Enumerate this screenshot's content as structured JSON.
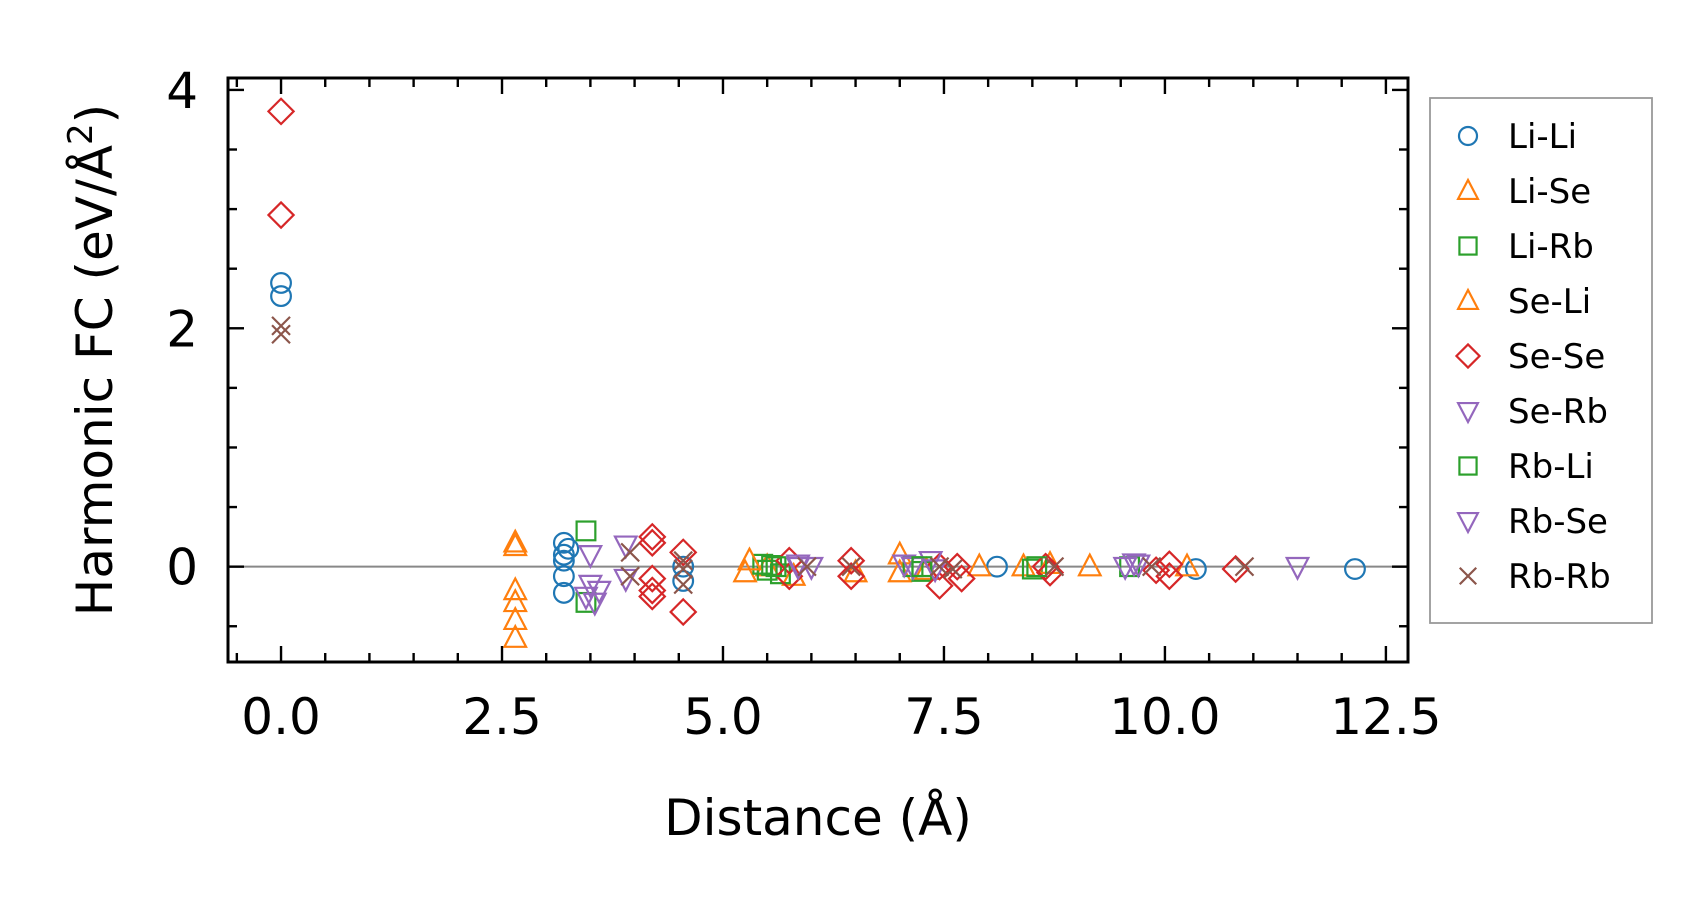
{
  "chart_data": {
    "type": "scatter",
    "title": "",
    "xlabel": "Distance (Å)",
    "ylabel": "Harmonic FC (eV/Å²)",
    "ylabel_parts": {
      "main": "Harmonic FC (eV/Å",
      "superscript": "2",
      "close": ")"
    },
    "xlim": [
      -0.6,
      12.75
    ],
    "ylim": [
      -0.8,
      4.1
    ],
    "x_ticks": [
      0.0,
      2.5,
      5.0,
      7.5,
      10.0,
      12.5
    ],
    "x_tick_labels": [
      "0.0",
      "2.5",
      "5.0",
      "7.5",
      "10.0",
      "12.5"
    ],
    "y_ticks": [
      0,
      2,
      4
    ],
    "y_tick_labels": [
      "0",
      "2",
      "4"
    ],
    "grid": false,
    "zero_line": true,
    "legend_position": "outside-right",
    "series": [
      {
        "name": "Li-Li",
        "marker": "circle",
        "color": "#1f77b4",
        "points": [
          [
            0.0,
            2.38
          ],
          [
            0.0,
            2.27
          ],
          [
            3.2,
            0.2
          ],
          [
            3.2,
            0.1
          ],
          [
            3.2,
            0.05
          ],
          [
            3.2,
            -0.08
          ],
          [
            3.2,
            -0.22
          ],
          [
            3.25,
            0.15
          ],
          [
            4.55,
            0.0
          ],
          [
            4.55,
            -0.12
          ],
          [
            8.1,
            0.0
          ],
          [
            10.35,
            -0.02
          ],
          [
            12.15,
            -0.02
          ]
        ]
      },
      {
        "name": "Li-Se",
        "marker": "triangle-up",
        "color": "#ff7f0e",
        "points": [
          [
            2.65,
            0.2
          ],
          [
            2.65,
            0.17
          ],
          [
            2.65,
            -0.2
          ],
          [
            2.65,
            -0.3
          ],
          [
            2.65,
            -0.45
          ],
          [
            2.65,
            -0.6
          ],
          [
            5.25,
            -0.05
          ],
          [
            5.5,
            0.0
          ],
          [
            5.8,
            -0.08
          ],
          [
            6.5,
            -0.05
          ],
          [
            7.0,
            0.1
          ],
          [
            7.0,
            -0.05
          ],
          [
            7.3,
            -0.03
          ],
          [
            7.9,
            0.0
          ],
          [
            8.4,
            0.0
          ],
          [
            9.15,
            0.0
          ],
          [
            10.25,
            0.0
          ]
        ]
      },
      {
        "name": "Li-Rb",
        "marker": "square",
        "color": "#2ca02c",
        "points": [
          [
            3.45,
            0.3
          ],
          [
            3.45,
            -0.3
          ],
          [
            5.45,
            0.02
          ],
          [
            5.5,
            -0.03
          ],
          [
            5.55,
            0.01
          ],
          [
            5.65,
            -0.06
          ],
          [
            7.15,
            0.0
          ],
          [
            7.25,
            -0.04
          ],
          [
            8.5,
            -0.02
          ],
          [
            9.6,
            0.0
          ]
        ]
      },
      {
        "name": "Se-Li",
        "marker": "triangle-up",
        "color": "#ff7f0e",
        "points": [
          [
            5.3,
            0.05
          ],
          [
            8.7,
            0.02
          ]
        ]
      },
      {
        "name": "Se-Se",
        "marker": "diamond",
        "color": "#d62728",
        "points": [
          [
            0.0,
            3.82
          ],
          [
            0.0,
            2.95
          ],
          [
            4.2,
            0.25
          ],
          [
            4.2,
            0.2
          ],
          [
            4.2,
            -0.1
          ],
          [
            4.2,
            -0.2
          ],
          [
            4.2,
            -0.25
          ],
          [
            4.55,
            0.12
          ],
          [
            4.55,
            -0.38
          ],
          [
            5.75,
            0.05
          ],
          [
            5.75,
            -0.08
          ],
          [
            6.45,
            0.05
          ],
          [
            6.45,
            -0.08
          ],
          [
            7.45,
            0.0
          ],
          [
            7.45,
            -0.16
          ],
          [
            7.65,
            0.0
          ],
          [
            7.7,
            -0.1
          ],
          [
            8.65,
            0.0
          ],
          [
            8.7,
            -0.05
          ],
          [
            9.9,
            -0.03
          ],
          [
            10.05,
            0.02
          ],
          [
            10.05,
            -0.08
          ],
          [
            10.8,
            -0.02
          ]
        ]
      },
      {
        "name": "Se-Rb",
        "marker": "triangle-down",
        "color": "#9467bd",
        "points": [
          [
            3.5,
            0.1
          ],
          [
            3.5,
            -0.15
          ],
          [
            3.55,
            -0.3
          ],
          [
            3.6,
            -0.2
          ],
          [
            3.9,
            0.18
          ],
          [
            3.9,
            -0.1
          ],
          [
            5.85,
            0.02
          ],
          [
            6.0,
            0.0
          ],
          [
            7.05,
            0.02
          ],
          [
            7.15,
            0.0
          ],
          [
            7.35,
            0.05
          ],
          [
            9.55,
            0.0
          ],
          [
            9.65,
            0.03
          ],
          [
            11.5,
            0.0
          ]
        ]
      },
      {
        "name": "Rb-Li",
        "marker": "square",
        "color": "#2ca02c",
        "points": [
          [
            5.6,
            0.0
          ],
          [
            7.25,
            0.0
          ],
          [
            8.55,
            0.0
          ]
        ]
      },
      {
        "name": "Rb-Se",
        "marker": "triangle-down",
        "color": "#9467bd",
        "points": [
          [
            3.45,
            -0.25
          ],
          [
            5.85,
            0.0
          ],
          [
            7.4,
            -0.02
          ],
          [
            9.7,
            0.02
          ]
        ]
      },
      {
        "name": "Rb-Rb",
        "marker": "x",
        "color": "#8c564b",
        "points": [
          [
            0.0,
            2.02
          ],
          [
            0.0,
            1.95
          ],
          [
            3.95,
            0.12
          ],
          [
            3.95,
            -0.08
          ],
          [
            4.55,
            0.05
          ],
          [
            4.55,
            -0.02
          ],
          [
            4.55,
            -0.15
          ],
          [
            5.95,
            0.0
          ],
          [
            6.45,
            0.0
          ],
          [
            7.45,
            0.0
          ],
          [
            7.6,
            -0.02
          ],
          [
            8.75,
            0.0
          ],
          [
            9.85,
            0.0
          ],
          [
            10.9,
            0.0
          ]
        ]
      }
    ]
  }
}
